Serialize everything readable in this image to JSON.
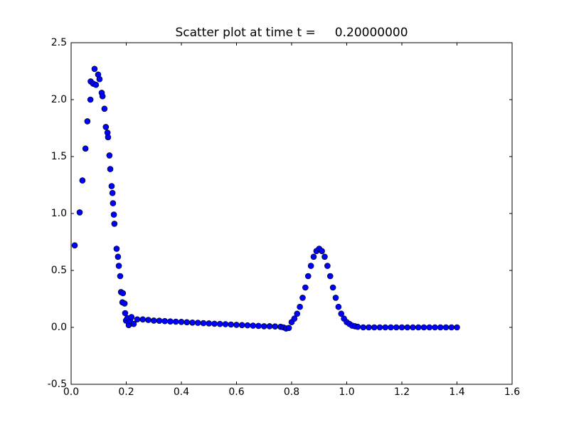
{
  "chart_data": {
    "type": "scatter",
    "title": "Scatter plot at time t =     0.20000000",
    "color": "#0000ff",
    "edgecolor": "#000000",
    "x": [
      0.013,
      0.031,
      0.041,
      0.052,
      0.059,
      0.07,
      0.071,
      0.08,
      0.085,
      0.09,
      0.098,
      0.103,
      0.111,
      0.114,
      0.121,
      0.126,
      0.132,
      0.134,
      0.139,
      0.142,
      0.147,
      0.15,
      0.152,
      0.155,
      0.157,
      0.165,
      0.17,
      0.173,
      0.178,
      0.181,
      0.186,
      0.188,
      0.194,
      0.196,
      0.199,
      0.204,
      0.209,
      0.214,
      0.219,
      0.227,
      0.24,
      0.26,
      0.28,
      0.3,
      0.32,
      0.34,
      0.36,
      0.38,
      0.4,
      0.42,
      0.44,
      0.46,
      0.48,
      0.5,
      0.52,
      0.54,
      0.56,
      0.58,
      0.6,
      0.62,
      0.64,
      0.66,
      0.68,
      0.7,
      0.72,
      0.74,
      0.76,
      0.77,
      0.78,
      0.79,
      0.8,
      0.81,
      0.82,
      0.83,
      0.84,
      0.85,
      0.86,
      0.87,
      0.88,
      0.89,
      0.9,
      0.91,
      0.92,
      0.93,
      0.94,
      0.95,
      0.96,
      0.97,
      0.98,
      0.99,
      1.0,
      1.01,
      1.02,
      1.03,
      1.04,
      1.06,
      1.08,
      1.1,
      1.12,
      1.14,
      1.16,
      1.18,
      1.2,
      1.22,
      1.24,
      1.26,
      1.28,
      1.3,
      1.32,
      1.34,
      1.36,
      1.38,
      1.4
    ],
    "values": [
      0.72,
      1.01,
      1.29,
      1.57,
      1.81,
      2.0,
      2.16,
      2.14,
      2.27,
      2.13,
      2.22,
      2.18,
      2.06,
      2.03,
      1.92,
      1.76,
      1.71,
      1.67,
      1.51,
      1.39,
      1.24,
      1.18,
      1.09,
      0.99,
      0.91,
      0.69,
      0.62,
      0.54,
      0.45,
      0.31,
      0.22,
      0.3,
      0.21,
      0.125,
      0.06,
      0.08,
      0.02,
      0.06,
      0.09,
      0.03,
      0.07,
      0.07,
      0.065,
      0.06,
      0.058,
      0.055,
      0.052,
      0.05,
      0.048,
      0.045,
      0.042,
      0.04,
      0.037,
      0.035,
      0.032,
      0.03,
      0.028,
      0.025,
      0.022,
      0.02,
      0.018,
      0.015,
      0.013,
      0.01,
      0.01,
      0.008,
      0.005,
      0,
      -0.01,
      -0.005,
      0.046,
      0.077,
      0.12,
      0.18,
      0.26,
      0.35,
      0.45,
      0.54,
      0.62,
      0.67,
      0.69,
      0.67,
      0.62,
      0.54,
      0.45,
      0.35,
      0.26,
      0.18,
      0.12,
      0.077,
      0.046,
      0.03,
      0.015,
      0.01,
      0.005,
      0,
      0,
      0,
      0,
      0,
      0,
      0,
      0,
      0,
      0,
      0,
      0,
      0,
      0,
      0,
      0,
      0,
      0
    ],
    "xlim": [
      0,
      1.6
    ],
    "xticks": [
      {
        "value": 0,
        "label": "0.0"
      },
      {
        "value": 0.2,
        "label": "0.2"
      },
      {
        "value": 0.4,
        "label": "0.4"
      },
      {
        "value": 0.6,
        "label": "0.6"
      },
      {
        "value": 0.8,
        "label": "0.8"
      },
      {
        "value": 1,
        "label": "1.0"
      },
      {
        "value": 1.2,
        "label": "1.2"
      },
      {
        "value": 1.4,
        "label": "1.4"
      },
      {
        "value": 1.6,
        "label": "1.6"
      }
    ],
    "ylim": [
      -0.5,
      2.5
    ],
    "yticks": [
      -0.5,
      {
        "value": 0,
        "label": "0.0"
      },
      0.5,
      {
        "value": 1,
        "label": "1.0"
      },
      1.5,
      {
        "value": 2,
        "label": "2.0"
      },
      2.5
    ],
    "grid": false
  }
}
